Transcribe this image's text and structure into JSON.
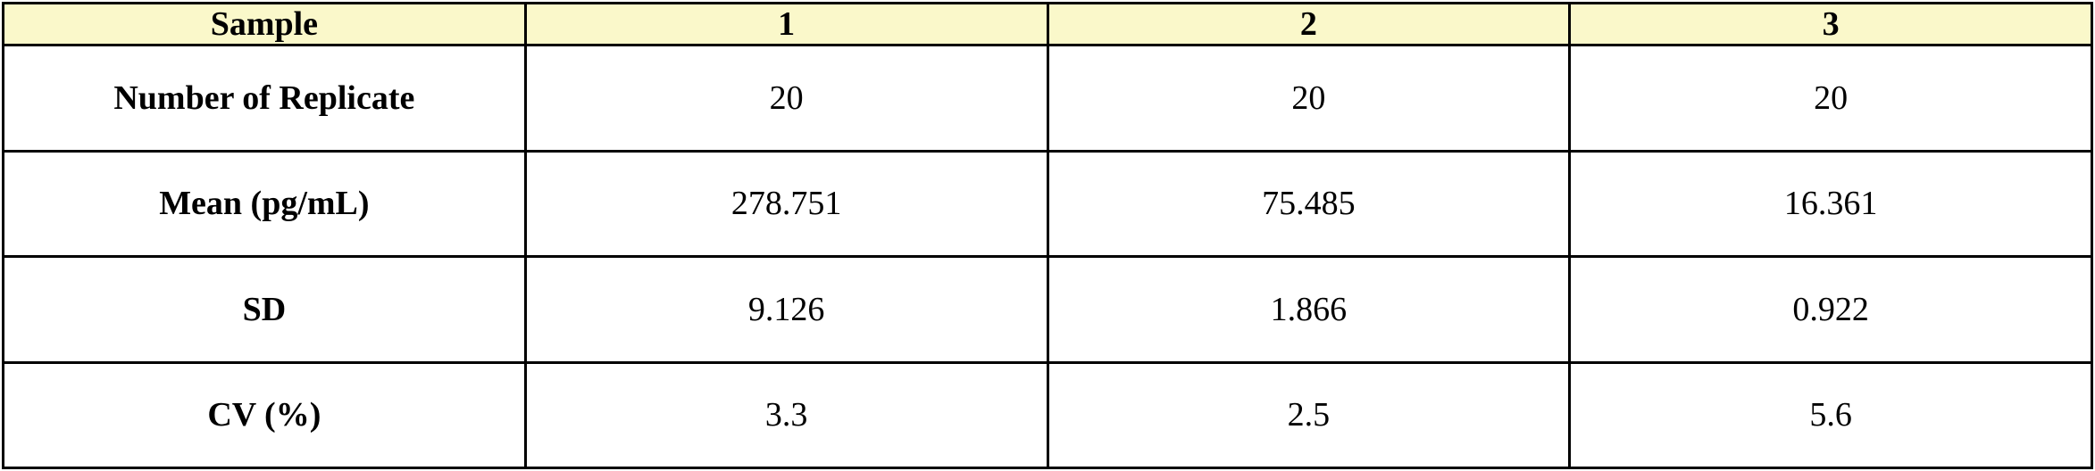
{
  "table": {
    "type": "table",
    "header_bg": "#faf8ca",
    "border_color": "#000000",
    "text_color": "#000000",
    "font_family": "Times New Roman",
    "header_fontsize": 38,
    "cell_fontsize": 38,
    "header_font_weight": 700,
    "row_label_font_weight": 700,
    "value_font_weight": 400,
    "columns": [
      "Sample",
      "1",
      "2",
      "3"
    ],
    "rows": [
      {
        "label": "Number of Replicate",
        "values": [
          "20",
          "20",
          "20"
        ]
      },
      {
        "label": "Mean (pg/mL)",
        "values": [
          "278.751",
          "75.485",
          "16.361"
        ]
      },
      {
        "label": "SD",
        "values": [
          "9.126",
          "1.866",
          "0.922"
        ]
      },
      {
        "label": "CV (%)",
        "values": [
          "3.3",
          "2.5",
          "5.6"
        ]
      }
    ]
  }
}
